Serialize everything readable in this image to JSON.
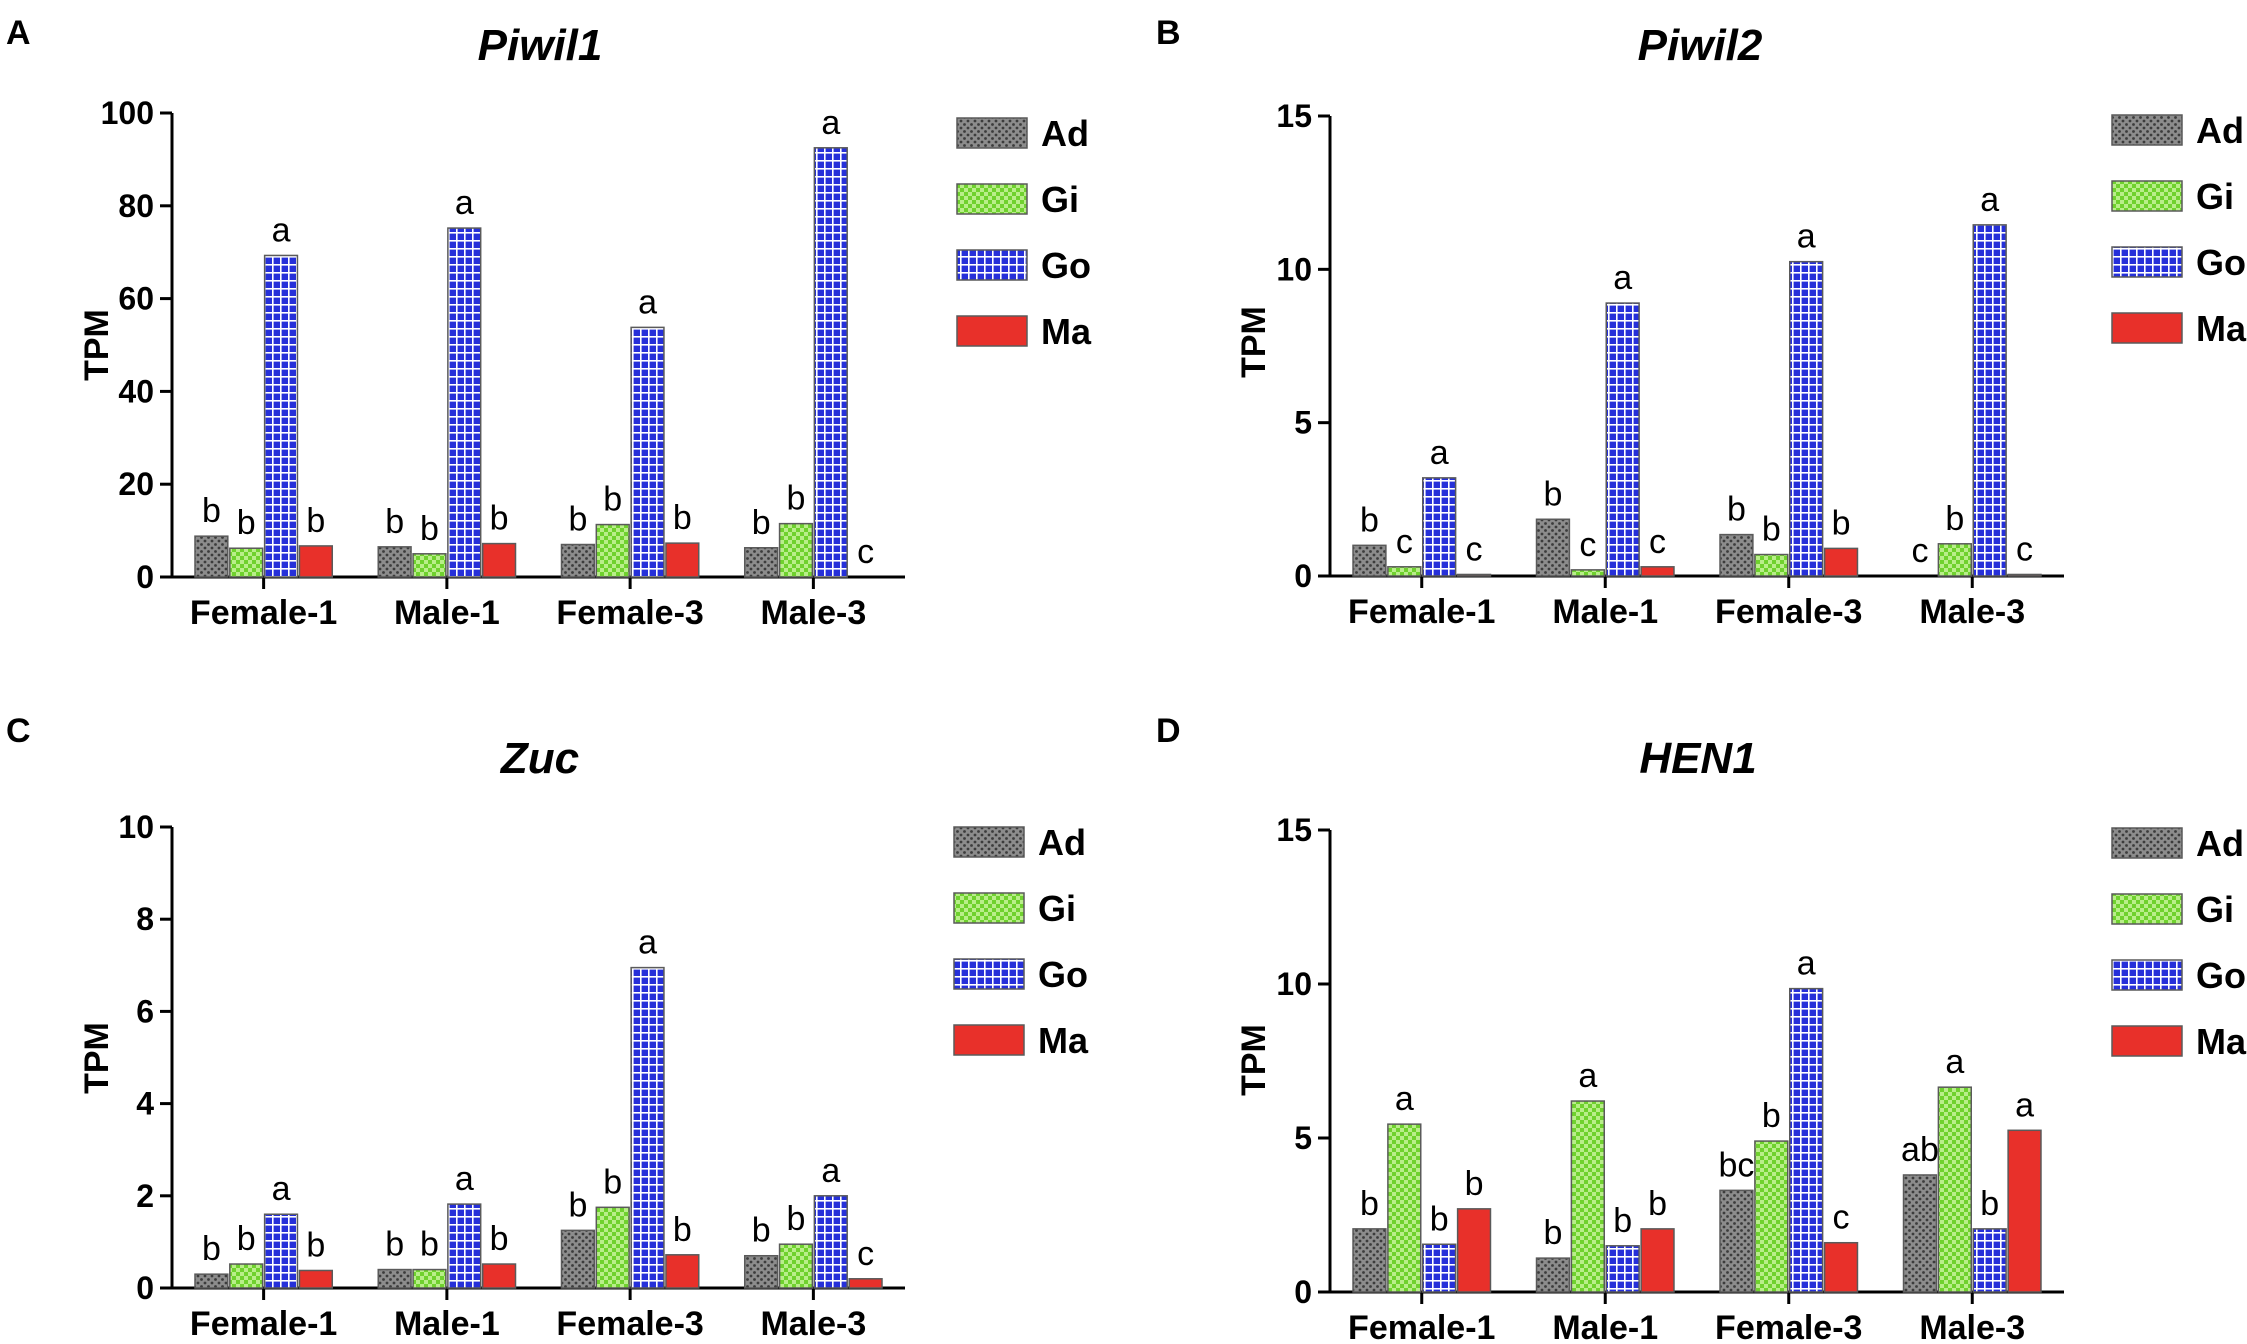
{
  "colors": {
    "Ad": "#8c8c8c",
    "Gi": "#6fd12e",
    "Go": "#2630d9",
    "Ma": "#e8302a",
    "axis": "#000000"
  },
  "chart_data": [
    {
      "panel": "A",
      "type": "bar",
      "title": "Piwil1",
      "xlabel": "",
      "ylabel": "TPM",
      "ylim": [
        0,
        100
      ],
      "yticks": [
        0,
        20,
        40,
        60,
        80,
        100
      ],
      "categories": [
        "Female-1",
        "Male-1",
        "Female-3",
        "Male-3"
      ],
      "legend_position": "right",
      "series": [
        {
          "name": "Ad",
          "values": [
            8.8,
            6.5,
            7.0,
            6.3
          ],
          "labels": [
            "b",
            "b",
            "b",
            "b"
          ]
        },
        {
          "name": "Gi",
          "values": [
            6.2,
            5.0,
            11.3,
            11.5
          ],
          "labels": [
            "b",
            "b",
            "b",
            "b"
          ]
        },
        {
          "name": "Go",
          "values": [
            69.3,
            75.2,
            53.8,
            92.5
          ],
          "labels": [
            "a",
            "a",
            "a",
            "a"
          ]
        },
        {
          "name": "Ma",
          "values": [
            6.7,
            7.2,
            7.3,
            0.0
          ],
          "labels": [
            "b",
            "b",
            "b",
            "c"
          ]
        }
      ]
    },
    {
      "panel": "B",
      "type": "bar",
      "title": "Piwil2",
      "xlabel": "",
      "ylabel": "TPM",
      "ylim": [
        0,
        15
      ],
      "yticks": [
        0,
        5,
        10,
        15
      ],
      "categories": [
        "Female-1",
        "Male-1",
        "Female-3",
        "Male-3"
      ],
      "legend_position": "right",
      "series": [
        {
          "name": "Ad",
          "values": [
            1.0,
            1.85,
            1.35,
            0.0
          ],
          "labels": [
            "b",
            "b",
            "b",
            "c"
          ]
        },
        {
          "name": "Gi",
          "values": [
            0.3,
            0.2,
            0.7,
            1.05
          ],
          "labels": [
            "c",
            "c",
            "b",
            "b"
          ]
        },
        {
          "name": "Go",
          "values": [
            3.2,
            8.9,
            10.25,
            11.45
          ],
          "labels": [
            "a",
            "a",
            "a",
            "a"
          ]
        },
        {
          "name": "Ma",
          "values": [
            0.05,
            0.3,
            0.9,
            0.05
          ],
          "labels": [
            "c",
            "c",
            "b",
            "c"
          ]
        }
      ]
    },
    {
      "panel": "C",
      "type": "bar",
      "title": "Zuc",
      "xlabel": "",
      "ylabel": "TPM",
      "ylim": [
        0,
        10
      ],
      "yticks": [
        0,
        2,
        4,
        6,
        8,
        10
      ],
      "categories": [
        "Female-1",
        "Male-1",
        "Female-3",
        "Male-3"
      ],
      "legend_position": "right",
      "series": [
        {
          "name": "Ad",
          "values": [
            0.3,
            0.4,
            1.25,
            0.7
          ],
          "labels": [
            "b",
            "b",
            "b",
            "b"
          ]
        },
        {
          "name": "Gi",
          "values": [
            0.52,
            0.4,
            1.75,
            0.95
          ],
          "labels": [
            "b",
            "b",
            "b",
            "b"
          ]
        },
        {
          "name": "Go",
          "values": [
            1.6,
            1.82,
            6.95,
            2.0
          ],
          "labels": [
            "a",
            "a",
            "a",
            "a"
          ]
        },
        {
          "name": "Ma",
          "values": [
            0.38,
            0.52,
            0.72,
            0.2
          ],
          "labels": [
            "b",
            "b",
            "b",
            "c"
          ]
        }
      ]
    },
    {
      "panel": "D",
      "type": "bar",
      "title": "HEN1",
      "xlabel": "",
      "ylabel": "TPM",
      "ylim": [
        0,
        15
      ],
      "yticks": [
        0,
        5,
        10,
        15
      ],
      "categories": [
        "Female-1",
        "Male-1",
        "Female-3",
        "Male-3"
      ],
      "legend_position": "right",
      "series": [
        {
          "name": "Ad",
          "values": [
            2.05,
            1.1,
            3.3,
            3.8
          ],
          "labels": [
            "b",
            "b",
            "bc",
            "ab"
          ]
        },
        {
          "name": "Gi",
          "values": [
            5.45,
            6.2,
            4.9,
            6.65
          ],
          "labels": [
            "a",
            "a",
            "b",
            "a"
          ]
        },
        {
          "name": "Go",
          "values": [
            1.55,
            1.5,
            9.85,
            2.05
          ],
          "labels": [
            "b",
            "b",
            "a",
            "b"
          ]
        },
        {
          "name": "Ma",
          "values": [
            2.7,
            2.05,
            1.6,
            5.25
          ],
          "labels": [
            "b",
            "b",
            "c",
            "a"
          ]
        }
      ]
    }
  ]
}
